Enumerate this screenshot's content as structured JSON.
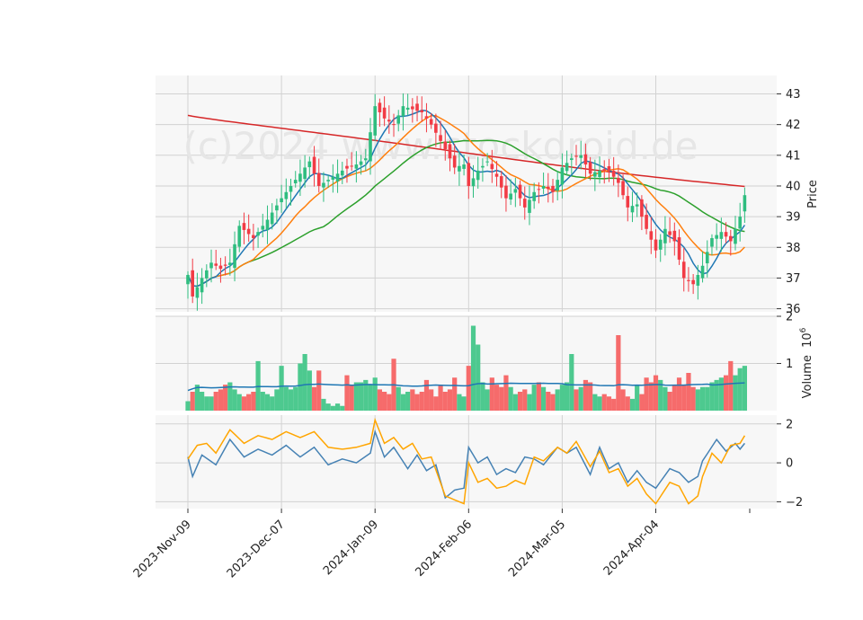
{
  "watermark": "(c)2024 www.stockdroid.de",
  "chart_data": [
    {
      "type": "candlestick",
      "panel": "price",
      "ylabel": "Price",
      "ylim": [
        35.9,
        43.6
      ],
      "yticks": [
        36,
        37,
        38,
        39,
        40,
        41,
        42,
        43
      ],
      "x_tick_labels": [
        "2023-Nov-09",
        "2023-Dec-07",
        "2024-Jan-09",
        "2024-Feb-06",
        "2024-Mar-05",
        "2024-Apr-04"
      ],
      "x_tick_index": [
        0,
        20,
        40,
        60,
        80,
        100
      ],
      "n_bars": 120,
      "colors": {
        "up": "#2ebd7f",
        "down": "#f23b45",
        "ma_fast": "#1f77b4",
        "ma_mid": "#ff7f0e",
        "ma_slow": "#2ca02c",
        "ma_long": "#d62728"
      },
      "anchors": [
        [
          0,
          37.1
        ],
        [
          1,
          36.4
        ],
        [
          3,
          37.0
        ],
        [
          5,
          37.5
        ],
        [
          7,
          37.3
        ],
        [
          9,
          37.5
        ],
        [
          11,
          38.7
        ],
        [
          14,
          38.3
        ],
        [
          17,
          38.9
        ],
        [
          20,
          39.6
        ],
        [
          23,
          40.2
        ],
        [
          26,
          40.8
        ],
        [
          28,
          40.0
        ],
        [
          30,
          40.2
        ],
        [
          33,
          40.5
        ],
        [
          36,
          40.7
        ],
        [
          38,
          40.9
        ],
        [
          40,
          42.6
        ],
        [
          42,
          42.2
        ],
        [
          44,
          42.0
        ],
        [
          46,
          42.6
        ],
        [
          48,
          42.5
        ],
        [
          50,
          42.4
        ],
        [
          52,
          42.0
        ],
        [
          55,
          41.2
        ],
        [
          57,
          40.6
        ],
        [
          59,
          40.7
        ],
        [
          60,
          40.0
        ],
        [
          62,
          40.5
        ],
        [
          64,
          40.8
        ],
        [
          66,
          40.3
        ],
        [
          68,
          39.6
        ],
        [
          70,
          39.9
        ],
        [
          72,
          39.3
        ],
        [
          74,
          39.8
        ],
        [
          76,
          40.0
        ],
        [
          78,
          39.8
        ],
        [
          80,
          40.6
        ],
        [
          82,
          40.9
        ],
        [
          84,
          41.0
        ],
        [
          86,
          40.4
        ],
        [
          88,
          40.5
        ],
        [
          90,
          40.5
        ],
        [
          92,
          40.1
        ],
        [
          94,
          39.3
        ],
        [
          96,
          39.4
        ],
        [
          98,
          38.6
        ],
        [
          100,
          37.9
        ],
        [
          102,
          38.6
        ],
        [
          104,
          38.2
        ],
        [
          106,
          37.0
        ],
        [
          108,
          36.8
        ],
        [
          110,
          37.4
        ],
        [
          112,
          38.3
        ],
        [
          114,
          38.5
        ],
        [
          116,
          38.2
        ],
        [
          118,
          39.0
        ],
        [
          119,
          39.7
        ]
      ]
    },
    {
      "type": "bar",
      "panel": "volume",
      "ylabel": "Volume  10^6",
      "ylim": [
        0,
        2
      ],
      "yticks": [
        1,
        2
      ],
      "volume_millions": [
        0.2,
        0.4,
        0.55,
        0.4,
        0.3,
        0.3,
        0.4,
        0.45,
        0.55,
        0.6,
        0.45,
        0.35,
        0.3,
        0.35,
        0.4,
        1.05,
        0.4,
        0.35,
        0.3,
        0.45,
        0.95,
        0.5,
        0.45,
        0.5,
        1.0,
        1.2,
        0.85,
        0.5,
        0.85,
        0.25,
        0.15,
        0.1,
        0.15,
        0.1,
        0.75,
        0.55,
        0.6,
        0.6,
        0.65,
        0.55,
        0.7,
        0.45,
        0.4,
        0.35,
        1.1,
        0.5,
        0.35,
        0.4,
        0.45,
        0.35,
        0.4,
        0.65,
        0.45,
        0.3,
        0.55,
        0.4,
        0.45,
        0.7,
        0.35,
        0.3,
        0.95,
        1.8,
        1.4,
        0.6,
        0.45,
        0.7,
        0.55,
        0.5,
        0.75,
        0.5,
        0.35,
        0.4,
        0.45,
        0.35,
        0.55,
        0.6,
        0.5,
        0.4,
        0.35,
        0.45,
        0.55,
        0.6,
        1.2,
        0.45,
        0.5,
        0.65,
        0.6,
        0.35,
        0.3,
        0.35,
        0.3,
        0.25,
        1.6,
        0.45,
        0.3,
        0.25,
        0.55,
        0.35,
        0.7,
        0.6,
        0.75,
        0.65,
        0.5,
        0.4,
        0.55,
        0.7,
        0.55,
        0.8,
        0.5,
        0.45,
        0.5,
        0.5,
        0.6,
        0.65,
        0.7,
        0.75,
        1.05,
        0.75,
        0.9,
        0.95
      ]
    },
    {
      "type": "line",
      "panel": "oscillator",
      "ylim": [
        -2.35,
        2.45
      ],
      "yticks": [
        -2,
        0,
        2
      ],
      "series": [
        {
          "color": "#4682b4",
          "anchors": [
            [
              0,
              0.3
            ],
            [
              1,
              -0.7
            ],
            [
              3,
              0.4
            ],
            [
              6,
              -0.1
            ],
            [
              9,
              1.2
            ],
            [
              12,
              0.3
            ],
            [
              15,
              0.7
            ],
            [
              18,
              0.4
            ],
            [
              21,
              0.9
            ],
            [
              24,
              0.3
            ],
            [
              27,
              0.8
            ],
            [
              30,
              -0.1
            ],
            [
              33,
              0.2
            ],
            [
              36,
              0.0
            ],
            [
              39,
              0.5
            ],
            [
              40,
              1.6
            ],
            [
              42,
              0.3
            ],
            [
              44,
              0.8
            ],
            [
              47,
              -0.3
            ],
            [
              49,
              0.4
            ],
            [
              51,
              -0.4
            ],
            [
              53,
              -0.1
            ],
            [
              55,
              -1.8
            ],
            [
              57,
              -1.4
            ],
            [
              59,
              -1.3
            ],
            [
              60,
              0.8
            ],
            [
              62,
              0.0
            ],
            [
              64,
              0.3
            ],
            [
              66,
              -0.6
            ],
            [
              68,
              -0.3
            ],
            [
              70,
              -0.5
            ],
            [
              72,
              0.3
            ],
            [
              74,
              0.2
            ],
            [
              76,
              -0.1
            ],
            [
              79,
              0.8
            ],
            [
              81,
              0.5
            ],
            [
              83,
              0.8
            ],
            [
              86,
              -0.6
            ],
            [
              88,
              0.8
            ],
            [
              90,
              -0.3
            ],
            [
              92,
              0.0
            ],
            [
              94,
              -1.0
            ],
            [
              96,
              -0.4
            ],
            [
              98,
              -1.0
            ],
            [
              100,
              -1.3
            ],
            [
              103,
              -0.3
            ],
            [
              105,
              -0.5
            ],
            [
              107,
              -1.0
            ],
            [
              109,
              -0.7
            ],
            [
              110,
              0.1
            ],
            [
              113,
              1.2
            ],
            [
              115,
              0.6
            ],
            [
              117,
              1.0
            ],
            [
              118,
              0.7
            ],
            [
              119,
              1.0
            ]
          ]
        },
        {
          "color": "#ffa500",
          "anchors": [
            [
              0,
              0.2
            ],
            [
              2,
              0.9
            ],
            [
              4,
              1.0
            ],
            [
              6,
              0.5
            ],
            [
              9,
              1.7
            ],
            [
              12,
              1.0
            ],
            [
              15,
              1.4
            ],
            [
              18,
              1.2
            ],
            [
              21,
              1.6
            ],
            [
              24,
              1.3
            ],
            [
              27,
              1.6
            ],
            [
              30,
              0.8
            ],
            [
              33,
              0.7
            ],
            [
              36,
              0.8
            ],
            [
              39,
              1.0
            ],
            [
              40,
              2.2
            ],
            [
              42,
              1.0
            ],
            [
              44,
              1.3
            ],
            [
              46,
              0.7
            ],
            [
              48,
              1.0
            ],
            [
              50,
              0.2
            ],
            [
              52,
              0.3
            ],
            [
              55,
              -1.7
            ],
            [
              57,
              -1.9
            ],
            [
              59,
              -2.1
            ],
            [
              60,
              0.0
            ],
            [
              62,
              -1.0
            ],
            [
              64,
              -0.8
            ],
            [
              66,
              -1.3
            ],
            [
              68,
              -1.2
            ],
            [
              70,
              -0.9
            ],
            [
              72,
              -1.1
            ],
            [
              74,
              0.3
            ],
            [
              76,
              0.1
            ],
            [
              79,
              0.8
            ],
            [
              81,
              0.5
            ],
            [
              83,
              1.1
            ],
            [
              86,
              -0.2
            ],
            [
              88,
              0.6
            ],
            [
              90,
              -0.5
            ],
            [
              92,
              -0.3
            ],
            [
              94,
              -1.2
            ],
            [
              96,
              -0.8
            ],
            [
              98,
              -1.6
            ],
            [
              100,
              -2.1
            ],
            [
              103,
              -1.0
            ],
            [
              105,
              -1.2
            ],
            [
              107,
              -2.1
            ],
            [
              109,
              -1.7
            ],
            [
              110,
              -0.7
            ],
            [
              112,
              0.5
            ],
            [
              114,
              0.0
            ],
            [
              116,
              0.9
            ],
            [
              118,
              1.0
            ],
            [
              119,
              1.4
            ]
          ]
        }
      ]
    }
  ]
}
